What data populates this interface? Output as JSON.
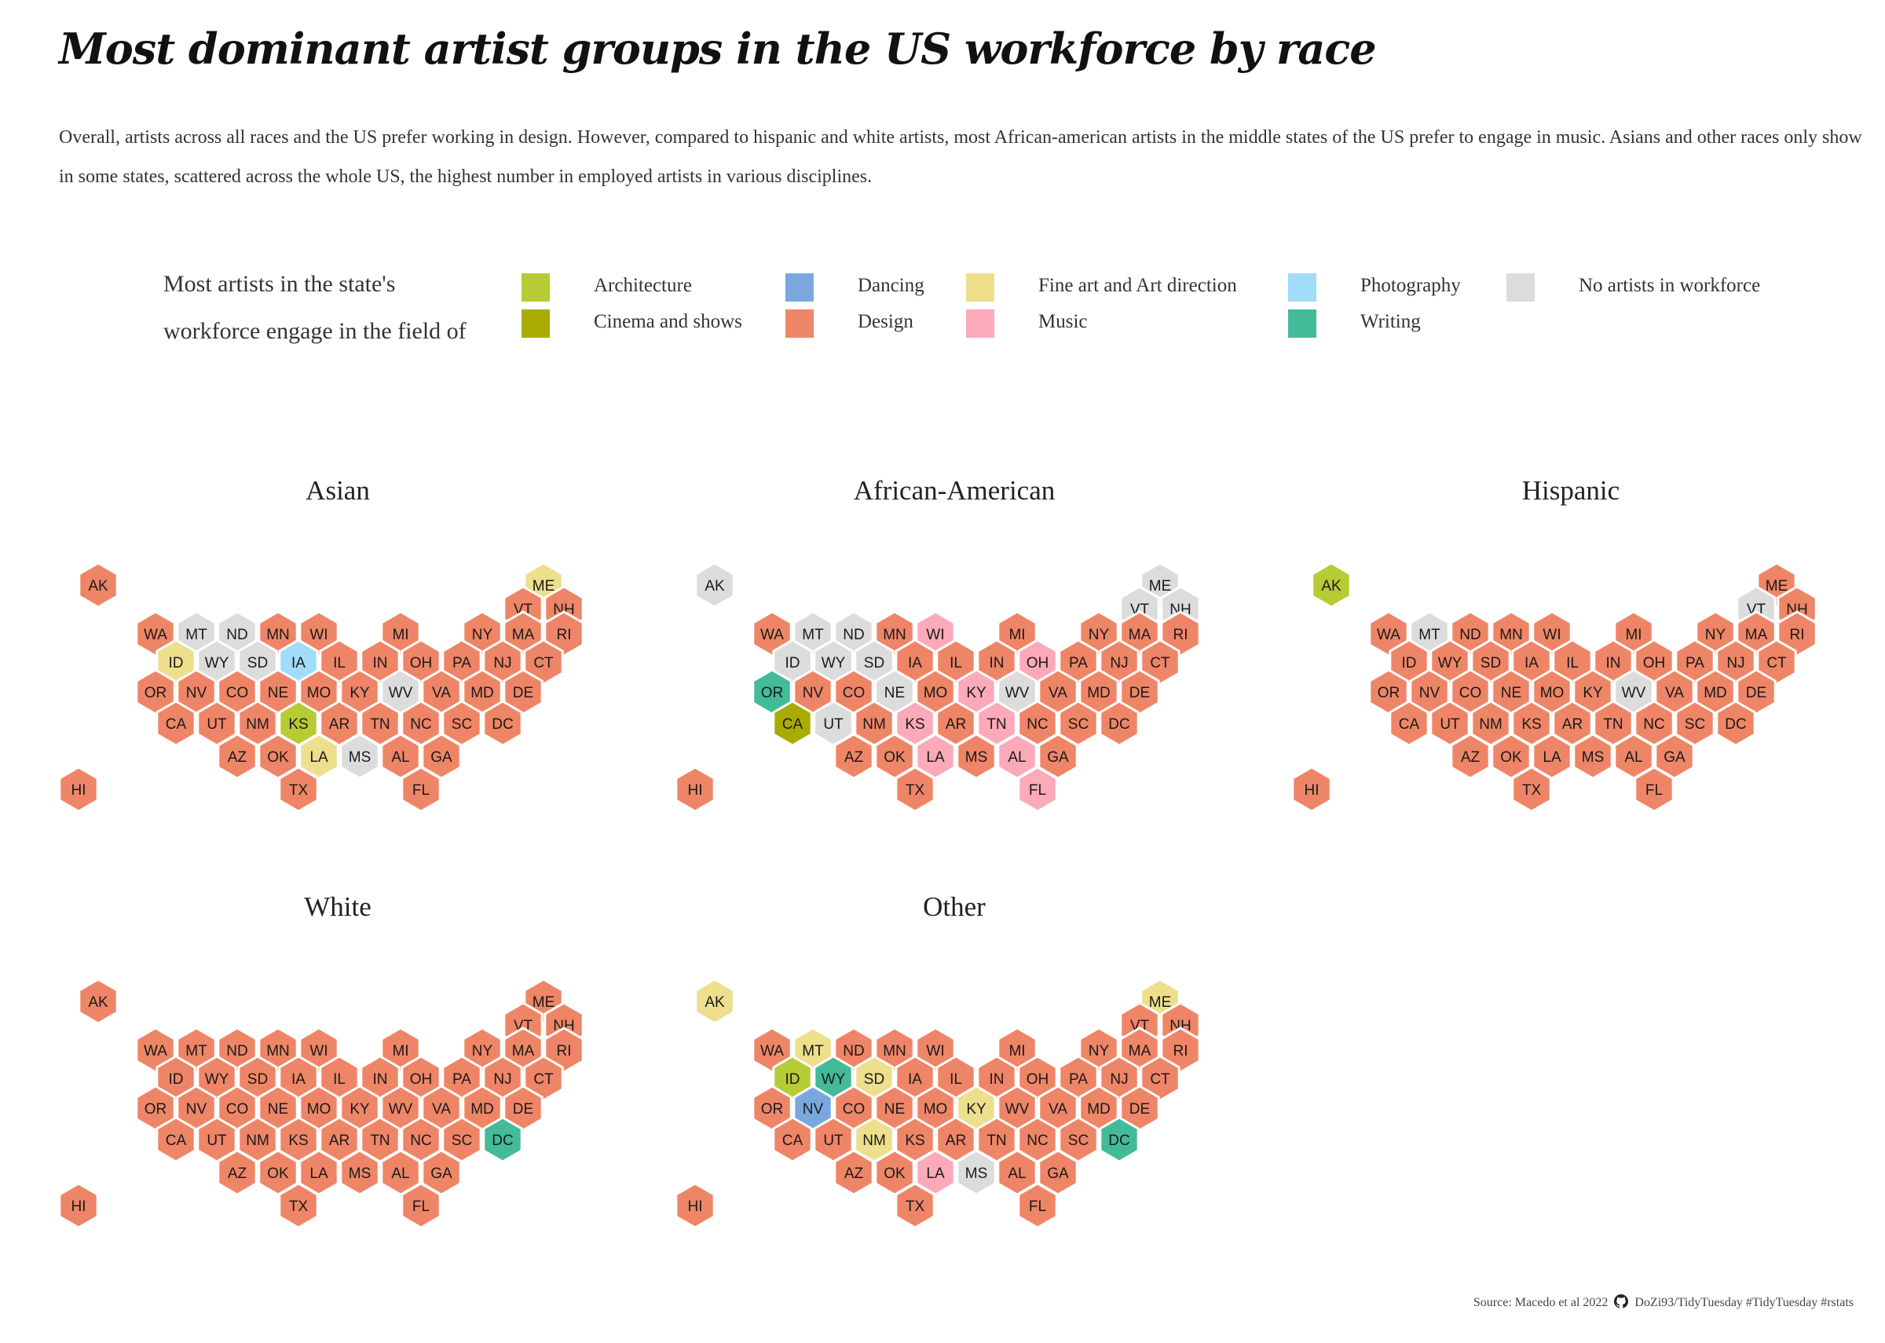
{
  "title": "Most dominant artist groups in the US workforce by race",
  "subtitle": "Overall, artists across all races and the US prefer working in design. However, compared to hispanic and white artists, most African-american artists in the middle states of the US prefer to engage in music. Asians and other races only show in some states, scattered across the whole US, the highest number in employed artists in various disciplines.",
  "legend": {
    "title_line1": "Most artists in the state's",
    "title_line2": "workforce engage in the field of",
    "items": [
      {
        "key": "Architecture",
        "label": "Architecture",
        "color": "#b6cb34"
      },
      {
        "key": "Cinema",
        "label": "Cinema and shows",
        "color": "#a9ac00"
      },
      {
        "key": "Dancing",
        "label": "Dancing",
        "color": "#7aa8de"
      },
      {
        "key": "Design",
        "label": "Design",
        "color": "#ef8567"
      },
      {
        "key": "FineArt",
        "label": "Fine art and Art direction",
        "color": "#eddf8b"
      },
      {
        "key": "Music",
        "label": "Music",
        "color": "#fca9ba"
      },
      {
        "key": "Photography",
        "label": "Photography",
        "color": "#a1dcfb"
      },
      {
        "key": "Writing",
        "label": "Writing",
        "color": "#43bb98"
      },
      {
        "key": "None",
        "label": "No artists in workforce",
        "color": "#dcdcdc"
      }
    ]
  },
  "map_data": {
    "panels": [
      {
        "title": "Asian",
        "states": {
          "AK": "Design",
          "ME": "FineArt",
          "VT": "Design",
          "NH": "Design",
          "WA": "Design",
          "MT": "None",
          "ND": "None",
          "MN": "Design",
          "WI": "Design",
          "MI": "Design",
          "NY": "Design",
          "MA": "Design",
          "RI": "Design",
          "ID": "FineArt",
          "WY": "None",
          "SD": "None",
          "IA": "Photography",
          "IL": "Design",
          "IN": "Design",
          "OH": "Design",
          "PA": "Design",
          "NJ": "Design",
          "CT": "Design",
          "OR": "Design",
          "NV": "Design",
          "CO": "Design",
          "NE": "Design",
          "MO": "Design",
          "KY": "Design",
          "WV": "None",
          "VA": "Design",
          "MD": "Design",
          "DE": "Design",
          "CA": "Design",
          "UT": "Design",
          "NM": "Design",
          "KS": "Architecture",
          "AR": "Design",
          "TN": "Design",
          "NC": "Design",
          "SC": "Design",
          "DC": "Design",
          "AZ": "Design",
          "OK": "Design",
          "LA": "FineArt",
          "MS": "None",
          "AL": "Design",
          "GA": "Design",
          "HI": "Design",
          "TX": "Design",
          "FL": "Design"
        }
      },
      {
        "title": "African-American",
        "states": {
          "AK": "None",
          "ME": "None",
          "VT": "None",
          "NH": "None",
          "WA": "Design",
          "MT": "None",
          "ND": "None",
          "MN": "Design",
          "WI": "Music",
          "MI": "Design",
          "NY": "Design",
          "MA": "Design",
          "RI": "Design",
          "ID": "None",
          "WY": "None",
          "SD": "None",
          "IA": "Design",
          "IL": "Design",
          "IN": "Design",
          "OH": "Music",
          "PA": "Design",
          "NJ": "Design",
          "CT": "Design",
          "OR": "Writing",
          "NV": "Design",
          "CO": "Design",
          "NE": "None",
          "MO": "Design",
          "KY": "Music",
          "WV": "None",
          "VA": "Design",
          "MD": "Design",
          "DE": "Design",
          "CA": "Cinema",
          "UT": "None",
          "NM": "Design",
          "KS": "Music",
          "AR": "Design",
          "TN": "Music",
          "NC": "Design",
          "SC": "Design",
          "DC": "Design",
          "AZ": "Design",
          "OK": "Design",
          "LA": "Music",
          "MS": "Design",
          "AL": "Music",
          "GA": "Design",
          "HI": "Design",
          "TX": "Design",
          "FL": "Music"
        }
      },
      {
        "title": "Hispanic",
        "states": {
          "AK": "Architecture",
          "ME": "Design",
          "VT": "None",
          "NH": "Design",
          "WA": "Design",
          "MT": "None",
          "ND": "Design",
          "MN": "Design",
          "WI": "Design",
          "MI": "Design",
          "NY": "Design",
          "MA": "Design",
          "RI": "Design",
          "ID": "Design",
          "WY": "Design",
          "SD": "Design",
          "IA": "Design",
          "IL": "Design",
          "IN": "Design",
          "OH": "Design",
          "PA": "Design",
          "NJ": "Design",
          "CT": "Design",
          "OR": "Design",
          "NV": "Design",
          "CO": "Design",
          "NE": "Design",
          "MO": "Design",
          "KY": "Design",
          "WV": "None",
          "VA": "Design",
          "MD": "Design",
          "DE": "Design",
          "CA": "Design",
          "UT": "Design",
          "NM": "Design",
          "KS": "Design",
          "AR": "Design",
          "TN": "Design",
          "NC": "Design",
          "SC": "Design",
          "DC": "Design",
          "AZ": "Design",
          "OK": "Design",
          "LA": "Design",
          "MS": "Design",
          "AL": "Design",
          "GA": "Design",
          "HI": "Design",
          "TX": "Design",
          "FL": "Design"
        }
      },
      {
        "title": "White",
        "states": {
          "AK": "Design",
          "ME": "Design",
          "VT": "Design",
          "NH": "Design",
          "WA": "Design",
          "MT": "Design",
          "ND": "Design",
          "MN": "Design",
          "WI": "Design",
          "MI": "Design",
          "NY": "Design",
          "MA": "Design",
          "RI": "Design",
          "ID": "Design",
          "WY": "Design",
          "SD": "Design",
          "IA": "Design",
          "IL": "Design",
          "IN": "Design",
          "OH": "Design",
          "PA": "Design",
          "NJ": "Design",
          "CT": "Design",
          "OR": "Design",
          "NV": "Design",
          "CO": "Design",
          "NE": "Design",
          "MO": "Design",
          "KY": "Design",
          "WV": "Design",
          "VA": "Design",
          "MD": "Design",
          "DE": "Design",
          "CA": "Design",
          "UT": "Design",
          "NM": "Design",
          "KS": "Design",
          "AR": "Design",
          "TN": "Design",
          "NC": "Design",
          "SC": "Design",
          "DC": "Writing",
          "AZ": "Design",
          "OK": "Design",
          "LA": "Design",
          "MS": "Design",
          "AL": "Design",
          "GA": "Design",
          "HI": "Design",
          "TX": "Design",
          "FL": "Design"
        }
      },
      {
        "title": "Other",
        "states": {
          "AK": "FineArt",
          "ME": "FineArt",
          "VT": "Design",
          "NH": "Design",
          "WA": "Design",
          "MT": "FineArt",
          "ND": "Design",
          "MN": "Design",
          "WI": "Design",
          "MI": "Design",
          "NY": "Design",
          "MA": "Design",
          "RI": "Design",
          "ID": "Architecture",
          "WY": "Writing",
          "SD": "FineArt",
          "IA": "Design",
          "IL": "Design",
          "IN": "Design",
          "OH": "Design",
          "PA": "Design",
          "NJ": "Design",
          "CT": "Design",
          "OR": "Design",
          "NV": "Dancing",
          "CO": "Design",
          "NE": "Design",
          "MO": "Design",
          "KY": "FineArt",
          "WV": "Design",
          "VA": "Design",
          "MD": "Design",
          "DE": "Design",
          "CA": "Design",
          "UT": "Design",
          "NM": "FineArt",
          "KS": "Design",
          "AR": "Design",
          "TN": "Design",
          "NC": "Design",
          "SC": "Design",
          "DC": "Writing",
          "AZ": "Design",
          "OK": "Design",
          "LA": "Music",
          "MS": "None",
          "AL": "Design",
          "GA": "Design",
          "HI": "Design",
          "TX": "Design",
          "FL": "Design"
        }
      }
    ]
  },
  "caption": {
    "source": "Source: Macedo et al 2022",
    "handle": "DoZi93/TidyTuesday #TidyTuesday #rstats"
  }
}
